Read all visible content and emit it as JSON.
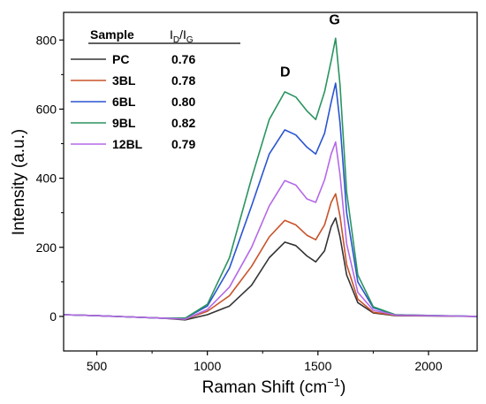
{
  "chart_data": {
    "type": "line",
    "xlabel": "Raman Shift (cm",
    "xlabel_sup": "−1",
    "xlabel_close": ")",
    "ylabel": "Intensity (a.u.)",
    "xlim": [
      350,
      2220
    ],
    "ylim": [
      -100,
      880
    ],
    "xticks": [
      500,
      1000,
      1500,
      2000
    ],
    "yticks": [
      0,
      200,
      400,
      600,
      800
    ],
    "grid": false,
    "legend_position": "top-left",
    "legend_header": {
      "sample": "Sample",
      "ratio_main": "I",
      "ratio_sub1": "D",
      "ratio_slash": "/I",
      "ratio_sub2": "G"
    },
    "annotations": [
      {
        "text": "D",
        "x": 1352,
        "y": 695
      },
      {
        "text": "G",
        "x": 1575,
        "y": 845
      }
    ],
    "x": [
      350,
      500,
      800,
      900,
      1000,
      1100,
      1200,
      1280,
      1350,
      1400,
      1450,
      1490,
      1530,
      1560,
      1580,
      1600,
      1630,
      1680,
      1750,
      1850,
      2220
    ],
    "series": [
      {
        "name": "PC",
        "ratio": "0.76",
        "color": "#333333",
        "values": [
          5,
          2,
          -5,
          -10,
          5,
          30,
          90,
          170,
          215,
          205,
          175,
          158,
          190,
          260,
          285,
          230,
          120,
          40,
          10,
          2,
          0
        ]
      },
      {
        "name": "3BL",
        "ratio": "0.78",
        "color": "#c8532a",
        "values": [
          5,
          2,
          -5,
          -8,
          15,
          60,
          145,
          230,
          278,
          265,
          235,
          222,
          265,
          330,
          355,
          290,
          150,
          50,
          12,
          3,
          0
        ]
      },
      {
        "name": "6BL",
        "ratio": "0.80",
        "color": "#2a55d0",
        "values": [
          5,
          2,
          -5,
          -5,
          30,
          140,
          320,
          470,
          540,
          525,
          490,
          470,
          530,
          620,
          675,
          560,
          300,
          100,
          25,
          5,
          0
        ]
      },
      {
        "name": "9BL",
        "ratio": "0.82",
        "color": "#2a9460",
        "values": [
          5,
          2,
          -5,
          -5,
          35,
          170,
          400,
          570,
          650,
          635,
          595,
          570,
          650,
          740,
          805,
          670,
          360,
          120,
          28,
          5,
          0
        ]
      },
      {
        "name": "12BL",
        "ratio": "0.79",
        "color": "#b569e8",
        "values": [
          5,
          2,
          -5,
          -8,
          20,
          85,
          200,
          320,
          393,
          380,
          340,
          330,
          395,
          470,
          505,
          410,
          210,
          70,
          18,
          4,
          0
        ]
      }
    ]
  }
}
